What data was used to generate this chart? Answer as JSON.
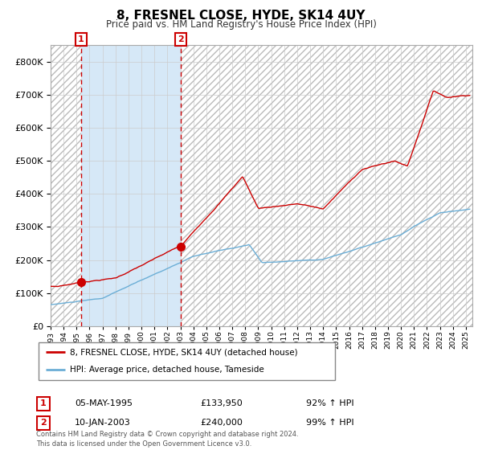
{
  "title": "8, FRESNEL CLOSE, HYDE, SK14 4UY",
  "subtitle": "Price paid vs. HM Land Registry's House Price Index (HPI)",
  "legend_line1": "8, FRESNEL CLOSE, HYDE, SK14 4UY (detached house)",
  "legend_line2": "HPI: Average price, detached house, Tameside",
  "sale1_date": "05-MAY-1995",
  "sale1_price": "£133,950",
  "sale1_hpi": "92% ↑ HPI",
  "sale2_date": "10-JAN-2003",
  "sale2_price": "£240,000",
  "sale2_hpi": "99% ↑ HPI",
  "footnote": "Contains HM Land Registry data © Crown copyright and database right 2024.\nThis data is licensed under the Open Government Licence v3.0.",
  "hpi_color": "#6baed6",
  "property_color": "#cc0000",
  "sale1_x": 1995.35,
  "sale1_y": 133950,
  "sale2_x": 2003.03,
  "sale2_y": 240000,
  "vline1_x": 1995.35,
  "vline2_x": 2003.03,
  "shade_start": 1995.35,
  "shade_end": 2003.03,
  "ylim_max": 850000,
  "xmin": 1993.0,
  "xmax": 2025.5,
  "yticks": [
    0,
    100000,
    200000,
    300000,
    400000,
    500000,
    600000,
    700000,
    800000
  ],
  "xticks": [
    1993,
    1994,
    1995,
    1996,
    1997,
    1998,
    1999,
    2000,
    2001,
    2002,
    2003,
    2004,
    2005,
    2006,
    2007,
    2008,
    2009,
    2010,
    2011,
    2012,
    2013,
    2014,
    2015,
    2016,
    2017,
    2018,
    2019,
    2020,
    2021,
    2022,
    2023,
    2024,
    2025
  ]
}
